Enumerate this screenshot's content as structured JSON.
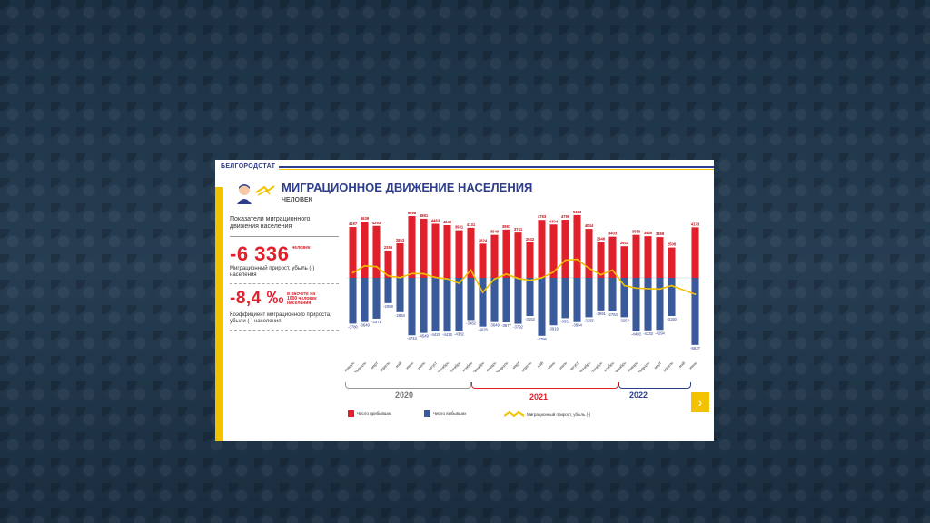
{
  "brand": "БЕЛГОРОДСТАТ",
  "title": "МИГРАЦИОННОЕ ДВИЖЕНИЕ НАСЕЛЕНИЯ",
  "subtitle": "ЧЕЛОВЕК",
  "left_panel": {
    "header": "Показатели миграционного движения населения",
    "value1": "-6 336",
    "value1_unit": "человек",
    "value1_label": "Миграционный прирост, убыль (-) населения",
    "value2": "-8,4 ‰",
    "value2_unit": "в расчете на 1000 человек населения",
    "value2_label": "Коэффициент миграционного прироста, убыли (-) населения"
  },
  "years": [
    "2020",
    "2021",
    "2022"
  ],
  "legend": {
    "arrivals": "Число прибывших",
    "departures": "Число выбывших",
    "net": "Миграционный прирост, убыль (-)"
  },
  "colors": {
    "arrivals": "#e0202a",
    "departures": "#3a5a9c",
    "net": "#f2c200",
    "year2021": "#e0202a",
    "year2022": "#2e3e8e",
    "year2020": "#777777"
  },
  "next_icon": "chevron-right-icon",
  "chart_data": {
    "type": "bar",
    "categories": [
      "январь",
      "февраль",
      "март",
      "апрель",
      "май",
      "июнь",
      "июль",
      "август",
      "сентябрь",
      "октябрь",
      "ноябрь",
      "декабрь",
      "январь",
      "февраль",
      "март",
      "апрель",
      "май",
      "июнь",
      "июль",
      "август",
      "сентябрь",
      "октябрь",
      "ноябрь",
      "декабрь",
      "январь",
      "февраль",
      "март",
      "апрель",
      "май",
      "июнь"
    ],
    "series": [
      {
        "name": "Число прибывших",
        "values": [
          4197,
          4639,
          4293,
          2255,
          2853,
          5098,
          4881,
          4463,
          4349,
          3931,
          4131,
          2824,
          3549,
          3987,
          3741,
          2942,
          4783,
          4404,
          4796,
          5183,
          4044,
          2946,
          3403,
          2611,
          3550,
          3440,
          3369,
          2506,
          null,
          4173
        ]
      },
      {
        "name": "Число выбывших",
        "values": [
          -3780,
          -3649,
          -3371,
          -2088,
          -2834,
          -4743,
          -4549,
          -4429,
          -4436,
          -4382,
          -3482,
          -4026,
          -3649,
          -3677,
          -3792,
          -3152,
          -4786,
          -3919,
          -3331,
          -3654,
          -3255,
          -2691,
          -2764,
          -3254,
          -4403,
          -4333,
          -4294,
          -3150,
          null,
          -5537
        ]
      }
    ],
    "ylim": [
      -6000,
      6000
    ]
  }
}
